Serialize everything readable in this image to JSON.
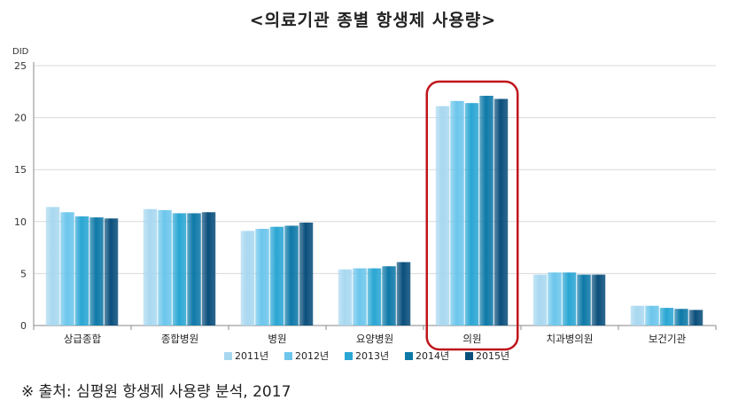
{
  "title": "<의료기관 종별 항생제 사용량>",
  "source": "※ 출처: 심평원 항생제 사용량 분석, 2017",
  "chart_data": {
    "type": "bar",
    "title": "<의료기관 종별 항생제 사용량>",
    "ylabel": "DID",
    "xlabel": "",
    "ylim": [
      0,
      25
    ],
    "yticks": [
      0,
      5,
      10,
      15,
      20,
      25
    ],
    "grid": true,
    "legend_position": "bottom",
    "categories": [
      "상급종합",
      "종합병원",
      "병원",
      "요양병원",
      "의원",
      "치과병의원",
      "보건기관"
    ],
    "highlight_category": "의원",
    "highlight_color": "#c0141c",
    "series": [
      {
        "name": "2011년",
        "color": "#a8d8f0",
        "values": [
          11.4,
          11.2,
          9.1,
          5.4,
          21.1,
          4.9,
          1.9
        ]
      },
      {
        "name": "2012년",
        "color": "#6cc6ec",
        "values": [
          10.9,
          11.1,
          9.3,
          5.5,
          21.6,
          5.1,
          1.9
        ]
      },
      {
        "name": "2013년",
        "color": "#2aa6d4",
        "values": [
          10.5,
          10.8,
          9.5,
          5.5,
          21.4,
          5.1,
          1.7
        ]
      },
      {
        "name": "2014년",
        "color": "#0e79a8",
        "values": [
          10.4,
          10.8,
          9.6,
          5.7,
          22.1,
          4.9,
          1.6
        ]
      },
      {
        "name": "2015년",
        "color": "#0a4f7c",
        "values": [
          10.3,
          10.9,
          9.9,
          6.1,
          21.8,
          4.9,
          1.5
        ]
      }
    ]
  }
}
